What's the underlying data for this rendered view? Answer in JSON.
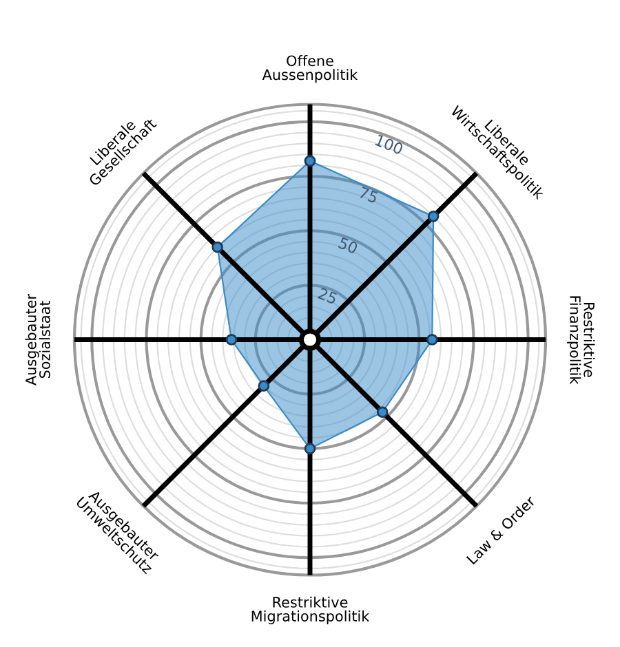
{
  "chart_data": {
    "type": "radar",
    "categories": [
      "Offene\nAussenpolitik",
      "Liberale\nWirtschaftspolitik",
      "Restriktive\nFinanzpolitik",
      "Law & Order",
      "Restriktive\nMigrationspolitik",
      "Ausgebauter\nUmweltschutz",
      "Ausgebauter\nSozialstaat",
      "Liberale\nGesellschaft"
    ],
    "series": [
      {
        "color": "#3a8bc8",
        "values": [
          82,
          80,
          56,
          47,
          50,
          30,
          36,
          60
        ]
      }
    ],
    "ylim": [
      0,
      108
    ],
    "yticks": [
      25,
      50,
      75,
      100
    ],
    "marker": "circle",
    "grid": true,
    "legend": false
  }
}
